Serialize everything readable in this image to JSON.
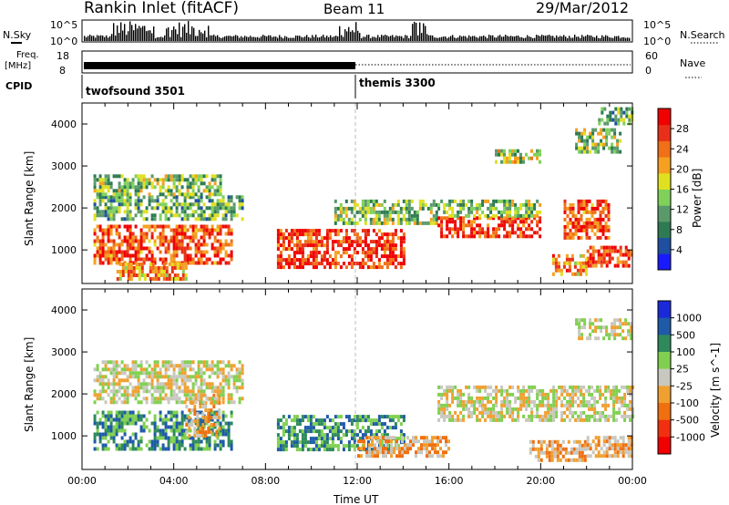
{
  "header": {
    "title": "Rankin Inlet (fitACF)",
    "beam": "Beam 11",
    "date": "29/Mar/2012"
  },
  "top_panels": {
    "nsky_label": "N.Sky",
    "nsky_tick_top": "10^5",
    "nsky_tick_bottom": "10^0",
    "nsearch_label": "N.Search",
    "nsearch_tick_top": "10^5",
    "nsearch_tick_bottom": "10^0",
    "freq_label_1": "Freq.",
    "freq_label_2": "[MHz]",
    "freq_tick_top": "18",
    "freq_tick_bottom": "8",
    "nave_label": "Nave",
    "nave_tick_top": "60",
    "nave_tick_bottom": "0",
    "cpid_label": "CPID",
    "cpid_1": "twofsound 3501",
    "cpid_2": "themis 3300"
  },
  "chart_data": [
    {
      "type": "heatmap",
      "name": "power",
      "ylabel": "Slant Range [km]",
      "ylim": [
        200,
        4500
      ],
      "yticks": [
        "1000",
        "2000",
        "3000",
        "4000"
      ],
      "colorbar_label": "Power [dB]",
      "colorbar_ticks": [
        "4",
        "8",
        "12",
        "16",
        "20",
        "24",
        "28"
      ],
      "colorbar_range": [
        0,
        32
      ],
      "colors": [
        "#1a1aff",
        "#1e4fa0",
        "#2e7a52",
        "#5a9a6a",
        "#7fd15a",
        "#e0e020",
        "#f5a020",
        "#f07018",
        "#e83018",
        "#f00000"
      ],
      "bands": [
        {
          "t0": 0.5,
          "t1": 6.5,
          "r0": 700,
          "r1": 1600,
          "level": 26
        },
        {
          "t0": 0.5,
          "t1": 7.0,
          "r0": 1700,
          "r1": 2300,
          "level": 12
        },
        {
          "t0": 0.5,
          "t1": 6.0,
          "r0": 2300,
          "r1": 2800,
          "level": 14
        },
        {
          "t0": 1.5,
          "t1": 4.5,
          "r0": 300,
          "r1": 700,
          "level": 22
        },
        {
          "t0": 8.5,
          "t1": 14.0,
          "r0": 600,
          "r1": 1500,
          "level": 28
        },
        {
          "t0": 11.0,
          "t1": 15.5,
          "r0": 1600,
          "r1": 2200,
          "level": 14
        },
        {
          "t0": 15.5,
          "t1": 20.0,
          "r0": 1300,
          "r1": 1800,
          "level": 28
        },
        {
          "t0": 15.5,
          "t1": 20.0,
          "r0": 1800,
          "r1": 2200,
          "level": 14
        },
        {
          "t0": 21.0,
          "t1": 23.0,
          "r0": 1300,
          "r1": 2200,
          "level": 26
        },
        {
          "t0": 22.0,
          "t1": 24.0,
          "r0": 600,
          "r1": 1100,
          "level": 28
        },
        {
          "t0": 20.5,
          "t1": 22.0,
          "r0": 400,
          "r1": 900,
          "level": 22
        },
        {
          "t0": 18.0,
          "t1": 20.0,
          "r0": 3100,
          "r1": 3400,
          "level": 16
        },
        {
          "t0": 21.5,
          "t1": 23.5,
          "r0": 3300,
          "r1": 3900,
          "level": 14
        },
        {
          "t0": 22.5,
          "t1": 24.0,
          "r0": 4000,
          "r1": 4400,
          "level": 12
        }
      ]
    },
    {
      "type": "heatmap",
      "name": "velocity",
      "ylabel": "Slant Range [km]",
      "ylim": [
        200,
        4500
      ],
      "yticks": [
        "1000",
        "2000",
        "3000",
        "4000"
      ],
      "xlabel": "Time UT",
      "xticks": [
        "00:00",
        "04:00",
        "08:00",
        "12:00",
        "16:00",
        "20:00",
        "00:00"
      ],
      "colorbar_label": "Velocity [m s^-1]",
      "colorbar_ticks": [
        "1000",
        "500",
        "100",
        "25",
        "-25",
        "-100",
        "-500",
        "-1000"
      ],
      "colors": [
        "#1a2ad8",
        "#1e5aa8",
        "#2e8a5a",
        "#80d050",
        "#c8c8c0",
        "#f0a030",
        "#f07010",
        "#f03010",
        "#f00000"
      ],
      "bands": [
        {
          "t0": 0.5,
          "t1": 6.5,
          "r0": 700,
          "r1": 1600,
          "level": 2
        },
        {
          "t0": 4.5,
          "t1": 6.0,
          "r0": 1000,
          "r1": 2000,
          "level": 5
        },
        {
          "t0": 0.5,
          "t1": 7.0,
          "r0": 1800,
          "r1": 2800,
          "level": 4
        },
        {
          "t0": 8.5,
          "t1": 14.0,
          "r0": 700,
          "r1": 1500,
          "level": 2
        },
        {
          "t0": 12.0,
          "t1": 16.0,
          "r0": 500,
          "r1": 1000,
          "level": 5
        },
        {
          "t0": 15.5,
          "t1": 24.0,
          "r0": 1400,
          "r1": 2200,
          "level": 4
        },
        {
          "t0": 19.5,
          "t1": 22.0,
          "r0": 400,
          "r1": 900,
          "level": 5
        },
        {
          "t0": 22.0,
          "t1": 24.0,
          "r0": 500,
          "r1": 1000,
          "level": 5
        },
        {
          "t0": 21.5,
          "t1": 24.0,
          "r0": 3300,
          "r1": 3800,
          "level": 4
        }
      ]
    }
  ]
}
